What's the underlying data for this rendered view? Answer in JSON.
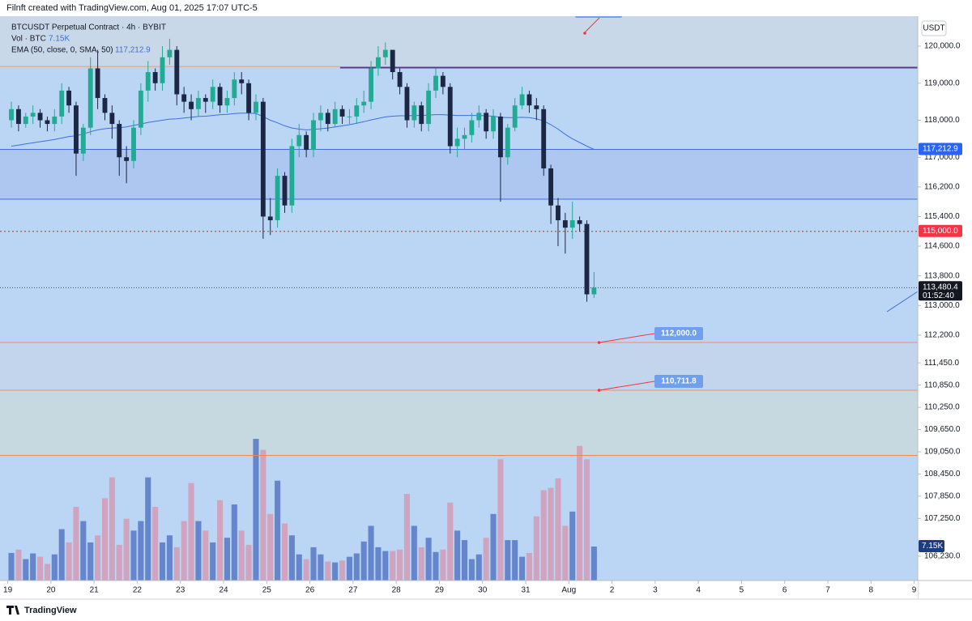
{
  "header": "Filnft created with TradingView.com, Aug 01, 2025 17:07 UTC-5",
  "footer": "TradingView",
  "chart_data": {
    "type": "candlestick",
    "title": "BTCUSDT Perpetual Contract · 4h · BYBIT",
    "currency": "USDT",
    "volume_label": "Vol · BTC",
    "volume_last": "7.15K",
    "ema_label": "EMA (50, close, 0, SMA, 50)",
    "ema_last": "117,212.9",
    "up_color": "#22ab94",
    "down_color": "#1b2745",
    "volume_up_color": "#5677c4",
    "volume_down_color": "#d39bb5",
    "ema_color": "#3f6fd8",
    "background": "#bbd6f5",
    "xlim": [
      -1.58,
      126.0
    ],
    "ylim": [
      105574,
      120809
    ],
    "volume_lim": [
      0,
      118.7
    ],
    "xticks": [
      {
        "value": -0.5,
        "label": "19"
      },
      {
        "value": 5.5,
        "label": "20"
      },
      {
        "value": 11.5,
        "label": "21"
      },
      {
        "value": 17.5,
        "label": "22"
      },
      {
        "value": 23.5,
        "label": "23"
      },
      {
        "value": 29.5,
        "label": "24"
      },
      {
        "value": 35.5,
        "label": "25"
      },
      {
        "value": 41.5,
        "label": "26"
      },
      {
        "value": 47.5,
        "label": "27"
      },
      {
        "value": 53.5,
        "label": "28"
      },
      {
        "value": 59.5,
        "label": "29"
      },
      {
        "value": 65.5,
        "label": "30"
      },
      {
        "value": 71.5,
        "label": "31"
      },
      {
        "value": 77.5,
        "label": "Aug"
      },
      {
        "value": 83.5,
        "label": "2"
      },
      {
        "value": 89.5,
        "label": "3"
      },
      {
        "value": 95.5,
        "label": "4"
      },
      {
        "value": 101.5,
        "label": "5"
      },
      {
        "value": 107.5,
        "label": "6"
      },
      {
        "value": 113.5,
        "label": "7"
      },
      {
        "value": 119.5,
        "label": "8"
      },
      {
        "value": 125.5,
        "label": "9"
      }
    ],
    "yticks": [
      {
        "value": 120000,
        "label": "120,000.0"
      },
      {
        "value": 119000,
        "label": "119,000.0"
      },
      {
        "value": 118000,
        "label": "118,000.0"
      },
      {
        "value": 117000,
        "label": "117,000.0"
      },
      {
        "value": 116200,
        "label": "116,200.0"
      },
      {
        "value": 115400,
        "label": "115,400.0"
      },
      {
        "value": 114600,
        "label": "114,600.0"
      },
      {
        "value": 113800,
        "label": "113,800.0"
      },
      {
        "value": 113000,
        "label": "113,000.0"
      },
      {
        "value": 112200,
        "label": "112,200.0"
      },
      {
        "value": 111450,
        "label": "111,450.0"
      },
      {
        "value": 110850,
        "label": "110,850.0"
      },
      {
        "value": 110250,
        "label": "110,250.0"
      },
      {
        "value": 109650,
        "label": "109,650.0"
      },
      {
        "value": 109050,
        "label": "109,050.0"
      },
      {
        "value": 108450,
        "label": "108,450.0"
      },
      {
        "value": 107850,
        "label": "107,850.0"
      },
      {
        "value": 107250,
        "label": "107,250.0"
      },
      {
        "value": 106230,
        "label": "106,230.0"
      }
    ],
    "open": [
      118000,
      118300,
      117900,
      118100,
      118200,
      118000,
      117900,
      118100,
      118800,
      118400,
      117100,
      117800,
      119400,
      118600,
      118200,
      117900,
      117000,
      116900,
      117800,
      118800,
      119300,
      119000,
      119700,
      119900,
      118700,
      118500,
      118300,
      118600,
      118500,
      118900,
      118400,
      118600,
      119100,
      119000,
      118200,
      118500,
      115400,
      115300,
      116500,
      115700,
      117300,
      117600,
      117200,
      118000,
      118200,
      117900,
      118300,
      118100,
      118100,
      118400,
      118500,
      119400,
      119700,
      119900,
      119300,
      118900,
      118000,
      118400,
      117900,
      118800,
      119200,
      118900,
      117300,
      117500,
      117600,
      118000,
      118200,
      117700,
      118100,
      117000,
      117800,
      118400,
      118700,
      118400,
      118300,
      116700,
      115700,
      115300,
      115100,
      115300,
      115200,
      113300
    ],
    "high": [
      118500,
      118400,
      118200,
      118400,
      118300,
      118100,
      118300,
      119000,
      118900,
      118500,
      117900,
      119700,
      119900,
      118700,
      118400,
      118000,
      117300,
      118000,
      119000,
      119600,
      119400,
      120000,
      120200,
      120000,
      118900,
      118700,
      118800,
      118700,
      119100,
      119000,
      118800,
      119300,
      119300,
      119100,
      118700,
      118600,
      115900,
      116700,
      116600,
      117500,
      117900,
      117700,
      118200,
      118400,
      118300,
      118500,
      118400,
      118300,
      118600,
      118800,
      119600,
      120000,
      120100,
      119900,
      119400,
      119000,
      118500,
      118500,
      119000,
      119400,
      119300,
      119000,
      117800,
      117800,
      118200,
      118400,
      118300,
      118300,
      118200,
      117900,
      118600,
      118900,
      118800,
      118600,
      118400,
      116800,
      115900,
      115500,
      115800,
      115400,
      115300,
      113900
    ],
    "low": [
      117800,
      117700,
      117800,
      117900,
      117800,
      117700,
      117700,
      117900,
      118200,
      116500,
      116900,
      117600,
      118300,
      118000,
      117500,
      116500,
      116300,
      116700,
      117600,
      118500,
      118800,
      118800,
      119500,
      118400,
      118200,
      118000,
      118100,
      118200,
      118300,
      118200,
      118200,
      118400,
      118700,
      118000,
      118000,
      114800,
      114900,
      115100,
      115500,
      115500,
      117000,
      117000,
      117000,
      117700,
      117700,
      117800,
      117900,
      117900,
      117900,
      118200,
      118300,
      119200,
      119500,
      119100,
      118700,
      117800,
      117800,
      117700,
      117700,
      118600,
      118700,
      117100,
      117000,
      117200,
      117400,
      117800,
      117500,
      117500,
      115800,
      116800,
      117700,
      118300,
      118200,
      118000,
      116500,
      115200,
      114600,
      114400,
      114800,
      115000,
      113100,
      113200
    ],
    "close": [
      118300,
      117900,
      118100,
      118200,
      118000,
      117900,
      118100,
      118800,
      118400,
      117100,
      117800,
      119400,
      118600,
      118200,
      117900,
      117000,
      116900,
      117800,
      118800,
      119300,
      119000,
      119700,
      119900,
      118700,
      118500,
      118300,
      118600,
      118500,
      118900,
      118400,
      118600,
      119100,
      119000,
      118200,
      118500,
      115400,
      115300,
      116500,
      115700,
      117300,
      117600,
      117200,
      118000,
      118200,
      117900,
      118300,
      118100,
      118100,
      118400,
      118500,
      119400,
      119700,
      119900,
      119300,
      118900,
      118000,
      118400,
      117900,
      118800,
      119200,
      118900,
      117300,
      117500,
      117600,
      118000,
      118200,
      117700,
      118100,
      117000,
      117800,
      118400,
      118700,
      118400,
      118300,
      116700,
      115700,
      115300,
      115100,
      115300,
      115200,
      113300,
      113480.4
    ],
    "volume": [
      5.8,
      6.5,
      4.5,
      5.7,
      5.0,
      3.5,
      5.5,
      10.8,
      8.0,
      15.5,
      12.5,
      8.0,
      9.5,
      17.3,
      21.7,
      7.5,
      13.0,
      10.5,
      12.5,
      21.7,
      15.5,
      8.0,
      9.5,
      7.0,
      12.5,
      20.5,
      12.5,
      10.5,
      8.0,
      16.9,
      9.0,
      16.0,
      10.5,
      7.5,
      29.8,
      27.5,
      14.0,
      21.0,
      12.0,
      9.5,
      5.5,
      4.5,
      7.0,
      5.5,
      4.0,
      3.8,
      4.2,
      5.0,
      5.7,
      8.2,
      11.5,
      7.0,
      6.2,
      6.2,
      6.5,
      18.2,
      11.5,
      7.0,
      9.0,
      6.0,
      6.5,
      16.4,
      10.5,
      8.5,
      4.5,
      5.5,
      9.0,
      14.0,
      25.5,
      8.5,
      8.5,
      5.0,
      5.8,
      13.5,
      19.0,
      19.5,
      21.5,
      11.5,
      14.5,
      28.3,
      25.5,
      7.15
    ],
    "ema": [
      117300,
      117330,
      117360,
      117390,
      117420,
      117450,
      117480,
      117520,
      117560,
      117580,
      117630,
      117690,
      117740,
      117770,
      117790,
      117800,
      117820,
      117860,
      117900,
      117940,
      117970,
      118000,
      118030,
      118040,
      118060,
      118080,
      118100,
      118110,
      118130,
      118150,
      118160,
      118180,
      118190,
      118190,
      118180,
      118100,
      118000,
      117930,
      117850,
      117790,
      117760,
      117740,
      117750,
      117770,
      117790,
      117820,
      117850,
      117880,
      117920,
      117960,
      118010,
      118050,
      118090,
      118110,
      118120,
      118120,
      118130,
      118130,
      118140,
      118150,
      118150,
      118140,
      118130,
      118130,
      118130,
      118130,
      118120,
      118110,
      118080,
      118070,
      118070,
      118080,
      118070,
      118040,
      117980,
      117880,
      117760,
      117620,
      117500,
      117400,
      117300,
      117212.9
    ],
    "zones": [
      {
        "from": 119450,
        "to": 120809,
        "color": "#c9d8e8"
      },
      {
        "from": 115870,
        "to": 117212.9,
        "color": "#aec7f0"
      },
      {
        "from": 110711.8,
        "to": 112000,
        "color": "#c2d5ec"
      },
      {
        "from": 108950,
        "to": 110711.8,
        "color": "#c6d9e0"
      }
    ],
    "levels": [
      {
        "value": 119450,
        "color": "#e8a070",
        "x_from": -1.58,
        "x_to": 45.7
      },
      {
        "value": 119420,
        "color": "#5b3a8c",
        "x_from": 45.7,
        "x_to": 126.0
      },
      {
        "value": 117212.9,
        "color": "#3f6fd8",
        "x_from": -1.58,
        "x_to": 126.0
      },
      {
        "value": 115870,
        "color": "#3f6fd8",
        "x_from": -1.58,
        "x_to": 126.0
      },
      {
        "value": 112000,
        "color": "#f08a6b",
        "x_from": -1.58,
        "x_to": 126.0
      },
      {
        "value": 110711.8,
        "color": "#f08a6b",
        "x_from": -1.58,
        "x_to": 126.0
      },
      {
        "value": 108950,
        "color": "#f0884a",
        "x_from": -1.58,
        "x_to": 126.0
      }
    ],
    "dotted_levels": [
      {
        "value": 115000,
        "color": "#f23645"
      },
      {
        "value": 113480.4,
        "color": "#131722"
      }
    ],
    "callouts": [
      {
        "value": 112000,
        "label": "112,000.0"
      },
      {
        "value": 110711.8,
        "label": "110,711.8"
      }
    ],
    "price_tags": [
      {
        "value": 117212.9,
        "label": "117,212.9",
        "color": "#2962ff"
      },
      {
        "value": 115000,
        "label": "115,000.0",
        "color": "#f23645"
      },
      {
        "value": 113480.4,
        "label": "113,480.4",
        "countdown": "01:52:40",
        "color": "#131722"
      }
    ]
  }
}
